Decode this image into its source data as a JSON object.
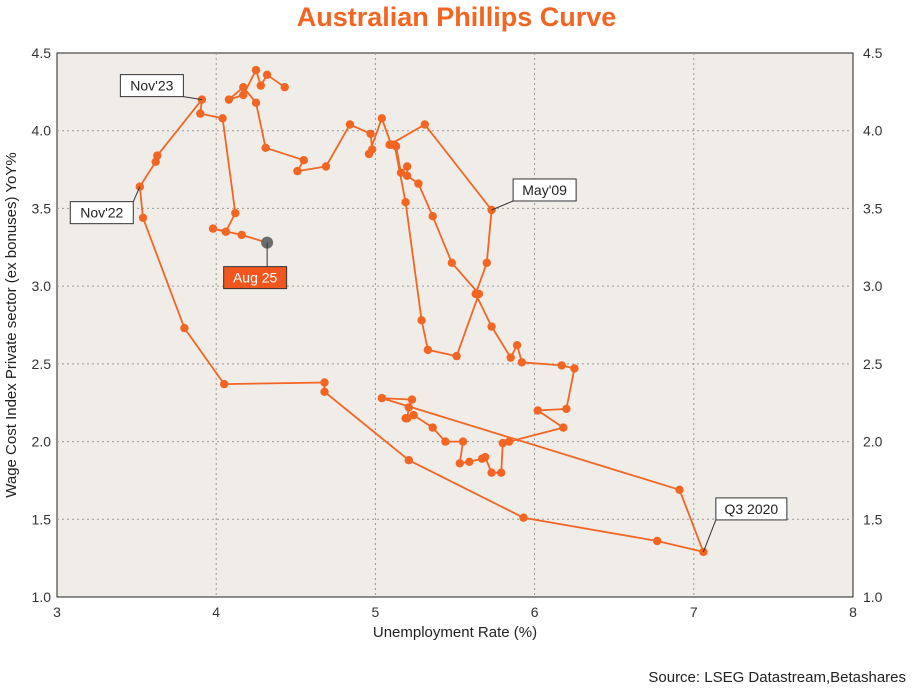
{
  "chart_data": {
    "type": "scatter",
    "title": "Australian Phillips Curve",
    "xlabel": "Unemployment Rate (%)",
    "ylabel": "Wage Cost Index Private sector (ex bonuses) YoY%",
    "xlim": [
      3,
      8
    ],
    "ylim": [
      1.0,
      4.5
    ],
    "x_ticks": [
      "3",
      "4",
      "5",
      "6",
      "7",
      "8"
    ],
    "y_ticks": [
      "1.0",
      "1.5",
      "2.0",
      "2.5",
      "3.0",
      "3.5",
      "4.0",
      "4.5"
    ],
    "grid": true,
    "line_color": "#f26522",
    "current_point_color": "#6b6b6b",
    "series": [
      {
        "points": [
          [
            4.43,
            4.28
          ],
          [
            4.32,
            4.36
          ],
          [
            4.28,
            4.29
          ],
          [
            4.25,
            4.39
          ],
          [
            4.17,
            4.23
          ],
          [
            4.08,
            4.2
          ],
          [
            4.17,
            4.28
          ],
          [
            4.25,
            4.18
          ],
          [
            4.31,
            3.89
          ],
          [
            4.55,
            3.81
          ],
          [
            4.51,
            3.74
          ],
          [
            4.69,
            3.77
          ],
          [
            4.84,
            4.04
          ],
          [
            4.97,
            3.98
          ],
          [
            4.98,
            3.88
          ],
          [
            4.96,
            3.85
          ],
          [
            5.04,
            4.08
          ],
          [
            5.1,
            3.91
          ],
          [
            5.13,
            3.9
          ],
          [
            5.16,
            3.73
          ],
          [
            5.2,
            3.77
          ],
          [
            5.2,
            3.71
          ],
          [
            5.27,
            3.66
          ],
          [
            5.36,
            3.45
          ],
          [
            5.48,
            3.15
          ],
          [
            5.65,
            2.95
          ],
          [
            5.51,
            2.55
          ],
          [
            5.33,
            2.59
          ],
          [
            5.29,
            2.78
          ],
          [
            5.19,
            3.54
          ],
          [
            5.12,
            3.91
          ],
          [
            5.09,
            3.91
          ],
          [
            5.09,
            3.91
          ],
          [
            5.31,
            4.04
          ],
          [
            5.73,
            3.49
          ],
          [
            5.7,
            3.15
          ],
          [
            5.63,
            2.95
          ],
          [
            5.73,
            2.74
          ],
          [
            5.85,
            2.54
          ],
          [
            5.89,
            2.62
          ],
          [
            5.92,
            2.51
          ],
          [
            6.17,
            2.49
          ],
          [
            6.25,
            2.47
          ],
          [
            6.2,
            2.21
          ],
          [
            6.02,
            2.2
          ],
          [
            6.18,
            2.09
          ],
          [
            5.84,
            2.0
          ],
          [
            5.8,
            1.99
          ],
          [
            5.79,
            1.8
          ],
          [
            5.73,
            1.8
          ],
          [
            5.69,
            1.9
          ],
          [
            5.67,
            1.89
          ],
          [
            5.59,
            1.87
          ],
          [
            5.53,
            1.86
          ],
          [
            5.55,
            2.0
          ],
          [
            5.44,
            2.0
          ],
          [
            5.36,
            2.09
          ],
          [
            5.24,
            2.17
          ],
          [
            5.19,
            2.15
          ],
          [
            5.2,
            2.15
          ],
          [
            5.21,
            2.22
          ],
          [
            5.23,
            2.27
          ],
          [
            5.04,
            2.28
          ],
          [
            6.91,
            1.69
          ],
          [
            7.06,
            1.29
          ],
          [
            6.77,
            1.36
          ],
          [
            5.93,
            1.51
          ],
          [
            5.21,
            1.88
          ],
          [
            4.68,
            2.32
          ],
          [
            4.68,
            2.38
          ],
          [
            4.05,
            2.37
          ],
          [
            3.8,
            2.73
          ],
          [
            3.54,
            3.44
          ],
          [
            3.52,
            3.64
          ],
          [
            3.62,
            3.8
          ],
          [
            3.63,
            3.84
          ],
          [
            3.91,
            4.2
          ],
          [
            3.9,
            4.11
          ],
          [
            4.04,
            4.08
          ],
          [
            4.12,
            3.47
          ],
          [
            4.06,
            3.35
          ],
          [
            3.98,
            3.37
          ],
          [
            4.16,
            3.33
          ],
          [
            4.32,
            3.28
          ]
        ]
      }
    ],
    "annotations": [
      {
        "label": "Nov'23",
        "x": 3.91,
        "y": 4.2
      },
      {
        "label": "Nov'22",
        "x": 3.52,
        "y": 3.64
      },
      {
        "label": "May'09",
        "x": 5.73,
        "y": 3.49
      },
      {
        "label": "Aug 25",
        "x": 4.32,
        "y": 3.28
      },
      {
        "label": "Q3 2020",
        "x": 7.06,
        "y": 1.29
      }
    ],
    "source": "Source: LSEG Datastream,Betashares"
  }
}
